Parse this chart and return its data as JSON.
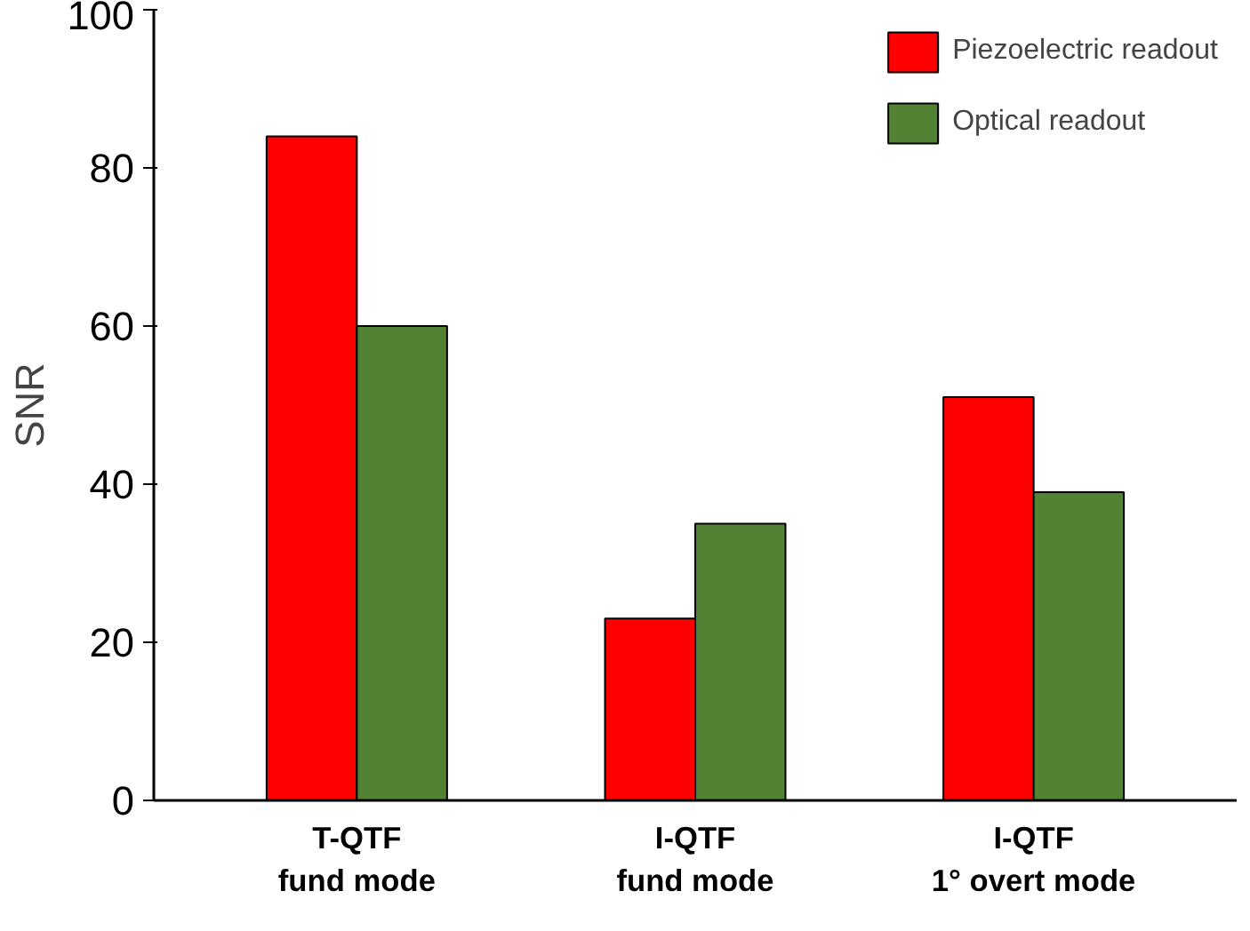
{
  "chart_data": {
    "type": "bar",
    "ylabel": "SNR",
    "categories": [
      "T-QTF\nfund mode",
      "I-QTF\nfund mode",
      "I-QTF\n1° overt mode"
    ],
    "series": [
      {
        "name": "Piezoelectric readout",
        "color": "#ff0000",
        "values": [
          84,
          23,
          51
        ]
      },
      {
        "name": "Optical readout",
        "color": "#548235",
        "values": [
          60,
          35,
          39
        ]
      }
    ],
    "ylim": [
      0,
      100
    ],
    "yticks": [
      0,
      20,
      40,
      60,
      80,
      100
    ],
    "grid": false,
    "legend": "top right"
  }
}
